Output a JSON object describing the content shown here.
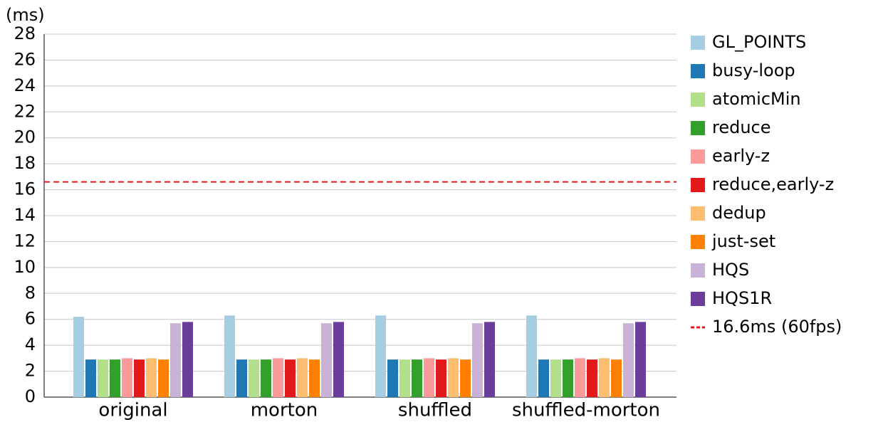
{
  "chart_data": {
    "type": "bar",
    "y_label": "(ms)",
    "categories": [
      "original",
      "morton",
      "shuffled",
      "shuffled-morton"
    ],
    "series": [
      {
        "name": "GL_POINTS",
        "color": "#a6cee3",
        "values": [
          6.2,
          6.3,
          6.3,
          6.3
        ]
      },
      {
        "name": "busy-loop",
        "color": "#1f78b4",
        "values": [
          2.9,
          2.9,
          2.9,
          2.9
        ]
      },
      {
        "name": "atomicMin",
        "color": "#b2df8a",
        "values": [
          2.9,
          2.9,
          2.9,
          2.9
        ]
      },
      {
        "name": "reduce",
        "color": "#33a02c",
        "values": [
          2.9,
          2.9,
          2.9,
          2.9
        ]
      },
      {
        "name": "early-z",
        "color": "#fb9a99",
        "values": [
          3.0,
          3.0,
          3.0,
          3.0
        ]
      },
      {
        "name": "reduce,early-z",
        "color": "#e31a1c",
        "values": [
          2.9,
          2.9,
          2.9,
          2.9
        ]
      },
      {
        "name": "dedup",
        "color": "#fdbf6f",
        "values": [
          3.0,
          3.0,
          3.0,
          3.0
        ]
      },
      {
        "name": "just-set",
        "color": "#ff7f00",
        "values": [
          2.9,
          2.9,
          2.9,
          2.9
        ]
      },
      {
        "name": "HQS",
        "color": "#cab2d6",
        "values": [
          5.7,
          5.7,
          5.7,
          5.7
        ]
      },
      {
        "name": "HQS1R",
        "color": "#6a3d9a",
        "values": [
          5.8,
          5.8,
          5.8,
          5.8
        ]
      }
    ],
    "reference_line": {
      "value": 16.6,
      "label": "16.6ms (60fps)",
      "color": "#e31a1c"
    },
    "ylim": [
      0,
      28
    ],
    "yticks": [
      0,
      2,
      4,
      6,
      8,
      10,
      12,
      14,
      16,
      18,
      20,
      22,
      24,
      26,
      28
    ],
    "grid": true,
    "legend": "right"
  }
}
